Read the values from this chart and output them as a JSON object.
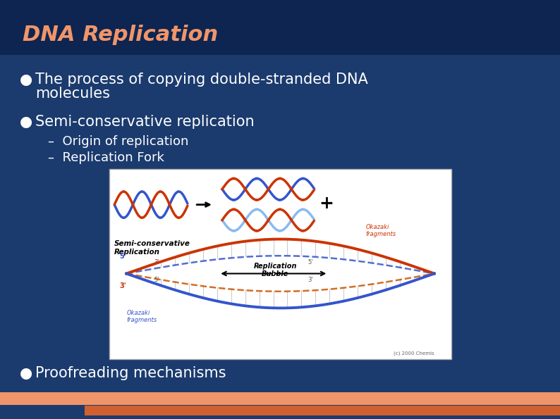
{
  "bg_color": "#1b3b6e",
  "title": "DNA Replication",
  "title_color": "#f0956a",
  "title_fontsize": 22,
  "bullet1_line1": "The process of copying double-stranded DNA",
  "bullet1_line2": "molecules",
  "bullet2": "Semi-conservative replication",
  "sub_bullet1": "Origin of replication",
  "sub_bullet2": "Replication Fork",
  "bullet3": "Proofreading mechanisms",
  "bullet_color": "#ffffff",
  "bullet_fontsize": 15,
  "sub_bullet_fontsize": 13,
  "footer_bar1_color": "#f0956a",
  "footer_bar2_color": "#d06030",
  "header_bar_color": "#0d2550"
}
